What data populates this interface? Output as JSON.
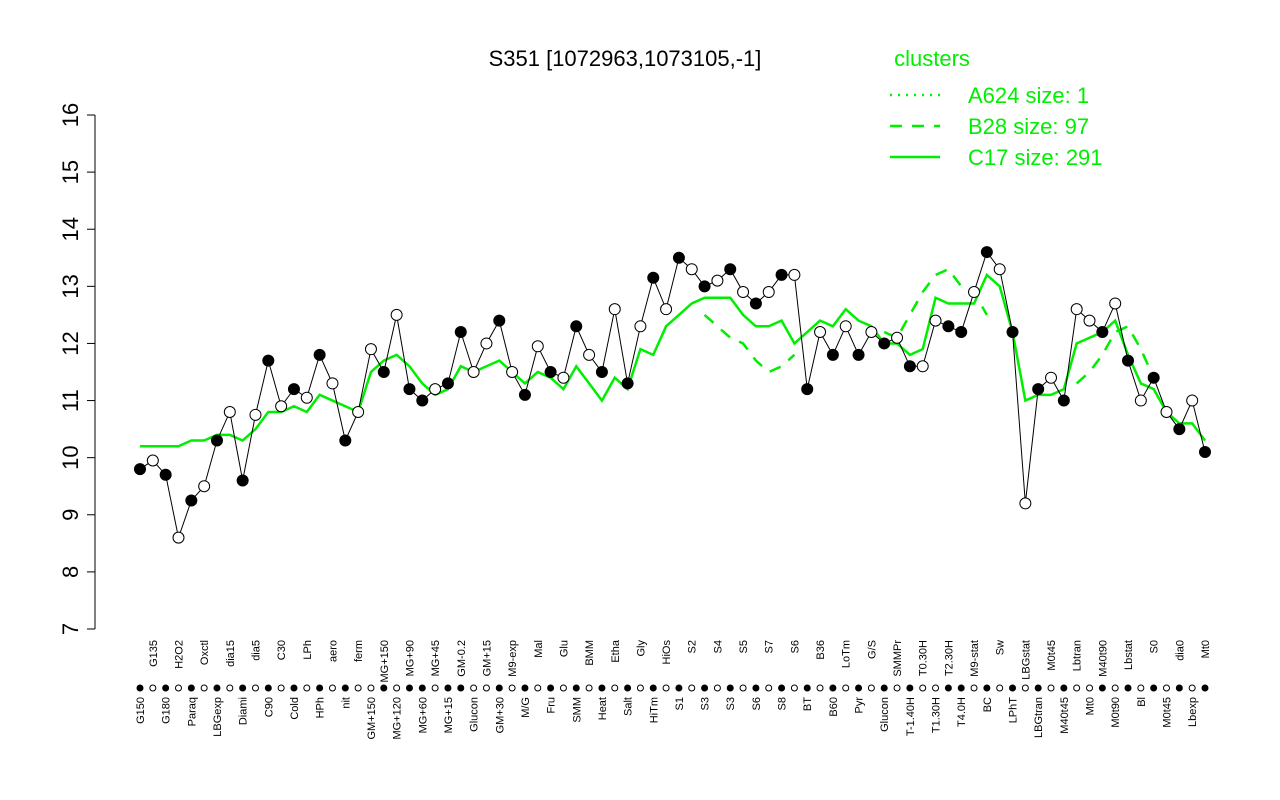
{
  "chart_data": {
    "type": "line",
    "title": "S351 [1072963,1073105,-1]",
    "legend_title": "clusters",
    "ylim": [
      7,
      16
    ],
    "yticks": [
      7,
      8,
      9,
      10,
      11,
      12,
      13,
      14,
      15,
      16
    ],
    "categories": [
      "G150",
      "G135",
      "G180",
      "H2O2",
      "Paraq",
      "Oxctl",
      "LBGexp",
      "dia15",
      "Diami",
      "dia5",
      "C90",
      "C30",
      "Cold",
      "LPh",
      "HPh",
      "aero",
      "nit",
      "ferm",
      "GM+150",
      "MG+150",
      "MG+120",
      "MG+90",
      "MG+60",
      "MG+45",
      "MG+15",
      "GM-0.2",
      "Glucon",
      "GM+15",
      "GM+30",
      "M9-exp",
      "M/G",
      "Mal",
      "Fru",
      "Glu",
      "SMM",
      "BMM",
      "Heat",
      "Etha",
      "Salt",
      "Gly",
      "HiTm",
      "HiOs",
      "S1",
      "S2",
      "S3",
      "S4",
      "S3",
      "S5",
      "S6",
      "S7",
      "S8",
      "S6",
      "BT",
      "B36",
      "B60",
      "LoTm",
      "Pyr",
      "G/S",
      "Glucon",
      "SMMPr",
      "T-1.40H",
      "T0.30H",
      "T1.30H",
      "T2.30H",
      "T4.0H",
      "M9-stat",
      "BC",
      "Sw",
      "LPhT",
      "LBGstat",
      "LBGtran",
      "M0t45",
      "M40t45",
      "Lbtran",
      "Mt0",
      "M40t90",
      "M0t90",
      "Lbstat",
      "Bl",
      "S0",
      "M0t45",
      "dia0",
      "Lbexp",
      "Mt0"
    ],
    "values": [
      9.8,
      9.95,
      9.7,
      8.6,
      9.25,
      9.5,
      10.3,
      10.8,
      9.6,
      10.75,
      11.7,
      10.9,
      11.2,
      11.05,
      11.8,
      11.3,
      10.3,
      10.8,
      11.9,
      11.5,
      12.5,
      11.2,
      11.0,
      11.2,
      11.3,
      12.2,
      11.5,
      12.0,
      12.4,
      11.5,
      11.1,
      11.95,
      11.5,
      11.4,
      12.3,
      11.8,
      11.5,
      12.6,
      11.3,
      12.3,
      13.15,
      12.6,
      13.5,
      13.3,
      13.0,
      13.1,
      13.3,
      12.9,
      12.7,
      12.9,
      13.2,
      13.2,
      11.2,
      12.2,
      11.8,
      12.3,
      11.8,
      12.2,
      12.0,
      12.1,
      11.6,
      11.6,
      12.4,
      12.3,
      12.2,
      12.9,
      13.6,
      13.3,
      12.2,
      9.2,
      11.2,
      11.4,
      11.0,
      12.6,
      12.4,
      12.2,
      12.7,
      11.7,
      11.0,
      11.4,
      10.8,
      10.5,
      11.0,
      10.1
    ],
    "marker_filled": [
      true,
      false,
      true,
      false,
      true,
      false,
      true,
      false,
      true,
      false,
      true,
      false,
      true,
      false,
      true,
      false,
      true,
      false,
      false,
      true,
      false,
      true,
      true,
      false,
      true,
      true,
      false,
      false,
      true,
      false,
      true,
      false,
      true,
      false,
      true,
      false,
      true,
      false,
      true,
      false,
      true,
      false,
      true,
      false,
      true,
      false,
      true,
      false,
      true,
      false,
      true,
      false,
      true,
      false,
      true,
      false,
      true,
      false,
      true,
      false,
      true,
      false,
      false,
      true,
      true,
      false,
      true,
      false,
      true,
      false,
      true,
      false,
      true,
      false,
      false,
      true,
      false,
      true,
      false,
      true,
      false,
      true,
      false,
      true
    ],
    "series": [
      {
        "name": "A624 size: 1",
        "color": "#00ee00",
        "dash": "dotted"
      },
      {
        "name": "B28 size: 97",
        "color": "#00ee00",
        "dash": "dashed",
        "values": [
          null,
          null,
          null,
          null,
          null,
          null,
          null,
          null,
          null,
          null,
          null,
          null,
          null,
          null,
          null,
          null,
          null,
          null,
          null,
          null,
          null,
          null,
          null,
          null,
          null,
          null,
          null,
          null,
          null,
          null,
          null,
          null,
          null,
          null,
          null,
          null,
          null,
          null,
          null,
          null,
          null,
          null,
          null,
          null,
          12.5,
          12.3,
          12.1,
          12.0,
          11.7,
          11.5,
          11.6,
          11.8,
          null,
          null,
          null,
          null,
          null,
          null,
          12.2,
          12.1,
          12.5,
          12.9,
          13.2,
          13.3,
          13.0,
          12.9,
          12.5,
          null,
          null,
          null,
          null,
          null,
          null,
          11.3,
          11.5,
          11.8,
          12.2,
          12.3,
          11.9,
          11.4,
          null,
          null,
          null,
          null
        ]
      },
      {
        "name": "C17 size: 291",
        "color": "#00ee00",
        "dash": "solid",
        "values": [
          10.2,
          10.2,
          10.2,
          10.2,
          10.3,
          10.3,
          10.4,
          10.4,
          10.3,
          10.5,
          10.8,
          10.8,
          10.9,
          10.8,
          11.1,
          11.0,
          10.9,
          10.8,
          11.5,
          11.7,
          11.8,
          11.6,
          11.3,
          11.1,
          11.2,
          11.6,
          11.5,
          11.6,
          11.7,
          11.5,
          11.3,
          11.5,
          11.4,
          11.2,
          11.6,
          11.3,
          11.0,
          11.4,
          11.2,
          11.9,
          11.8,
          12.3,
          12.5,
          12.7,
          12.8,
          12.8,
          12.8,
          12.5,
          12.3,
          12.3,
          12.4,
          12.0,
          12.2,
          12.4,
          12.3,
          12.6,
          12.4,
          12.3,
          12.0,
          12.0,
          11.8,
          11.9,
          12.8,
          12.7,
          12.7,
          12.7,
          13.2,
          13.0,
          12.2,
          11.0,
          11.1,
          11.1,
          11.2,
          12.0,
          12.1,
          12.2,
          12.4,
          11.8,
          11.3,
          11.2,
          10.8,
          10.6,
          10.6,
          10.3
        ]
      }
    ]
  }
}
